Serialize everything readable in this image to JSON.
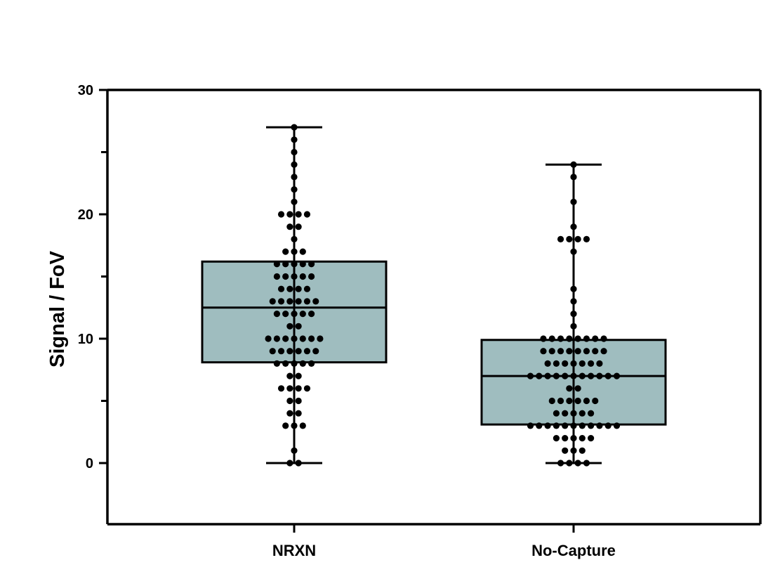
{
  "chart_data": {
    "type": "box",
    "ylabel": "Signal / FoV",
    "xlabel": "",
    "ylim": [
      -5,
      30
    ],
    "yticks_major": [
      0,
      10,
      20,
      30
    ],
    "yticks_minor": [
      5,
      15,
      25
    ],
    "categories": [
      "NRXN",
      "No-Capture"
    ],
    "box_color": "#9fbdbf",
    "point_color": "#000000",
    "boxes": [
      {
        "name": "NRXN",
        "min": 0,
        "q1": 8.1,
        "median": 12.5,
        "q3": 16.2,
        "max": 27,
        "points": [
          [
            0,
            2
          ],
          [
            1,
            1
          ],
          [
            3,
            3
          ],
          [
            4,
            2
          ],
          [
            5,
            2
          ],
          [
            6,
            4
          ],
          [
            7,
            2
          ],
          [
            8,
            5
          ],
          [
            9,
            6
          ],
          [
            10,
            7
          ],
          [
            11,
            2
          ],
          [
            12,
            5
          ],
          [
            13,
            6
          ],
          [
            14,
            4
          ],
          [
            15,
            5
          ],
          [
            16,
            5
          ],
          [
            17,
            3
          ],
          [
            18,
            1
          ],
          [
            19,
            2
          ],
          [
            20,
            4
          ],
          [
            21,
            1
          ],
          [
            22,
            1
          ],
          [
            23,
            1
          ],
          [
            24,
            1
          ],
          [
            25,
            1
          ],
          [
            26,
            1
          ],
          [
            27,
            1
          ]
        ]
      },
      {
        "name": "No-Capture",
        "min": 0,
        "q1": 3.1,
        "median": 7,
        "q3": 9.9,
        "max": 24,
        "points": [
          [
            0,
            4
          ],
          [
            1,
            3
          ],
          [
            2,
            5
          ],
          [
            3,
            11
          ],
          [
            4,
            5
          ],
          [
            5,
            6
          ],
          [
            6,
            2
          ],
          [
            7,
            11
          ],
          [
            8,
            7
          ],
          [
            9,
            8
          ],
          [
            10,
            8
          ],
          [
            11,
            1
          ],
          [
            12,
            1
          ],
          [
            13,
            1
          ],
          [
            14,
            1
          ],
          [
            17,
            1
          ],
          [
            18,
            4
          ],
          [
            19,
            1
          ],
          [
            21,
            1
          ],
          [
            23,
            1
          ],
          [
            24,
            1
          ]
        ]
      }
    ]
  }
}
